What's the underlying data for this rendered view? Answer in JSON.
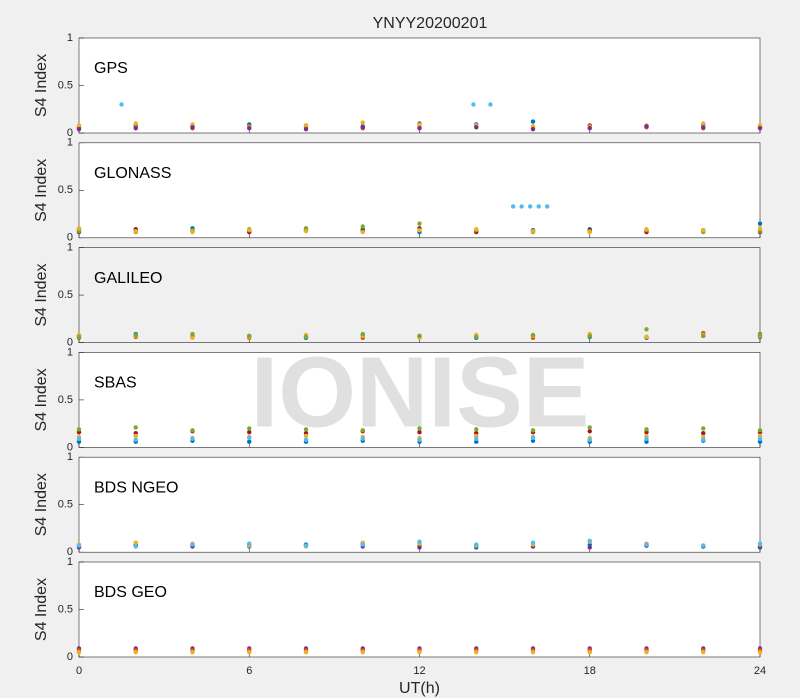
{
  "title": "YNYY20200201",
  "watermark": "IONISE",
  "chart_data": [
    {
      "type": "scatter",
      "label": "GPS",
      "ylabel": "S4 Index",
      "background": "#ffffff",
      "xlim": [
        0,
        24
      ],
      "ylim": [
        0,
        1
      ],
      "yticks": [
        0,
        0.5,
        1
      ],
      "x": [
        0,
        2,
        4,
        6,
        8,
        10,
        12,
        14,
        16,
        18,
        20,
        22,
        24
      ],
      "series": [
        {
          "color": "#0072bd",
          "values": [
            0.06,
            0.08,
            0.07,
            0.09,
            0.08,
            0.07,
            0.1,
            0.09,
            0.12,
            0.08,
            0.07,
            0.09,
            0.06
          ]
        },
        {
          "color": "#d95319",
          "values": [
            0.05,
            0.06,
            0.05,
            0.07,
            0.06,
            0.05,
            0.06,
            0.07,
            0.05,
            0.08,
            0.06,
            0.05,
            0.07
          ]
        },
        {
          "color": "#edb120",
          "values": [
            0.08,
            0.1,
            0.09,
            0.06,
            0.08,
            0.11,
            0.09,
            0.08,
            0.07,
            0.06,
            0.08,
            0.1,
            0.08
          ]
        },
        {
          "color": "#7e2f8e",
          "values": [
            0.04,
            0.05,
            0.06,
            0.05,
            0.04,
            0.06,
            0.05,
            0.06,
            0.04,
            0.05,
            0.07,
            0.06,
            0.05
          ]
        },
        {
          "color": "#4dbeee",
          "x": [
            1.5,
            13.9,
            14.5
          ],
          "values": [
            0.3,
            0.3,
            0.3
          ]
        }
      ]
    },
    {
      "type": "scatter",
      "label": "GLONASS",
      "ylabel": "S4 Index",
      "background": "#ffffff",
      "xlim": [
        0,
        24
      ],
      "ylim": [
        0,
        1
      ],
      "yticks": [
        0,
        0.5,
        1
      ],
      "x": [
        0,
        2,
        4,
        6,
        8,
        10,
        12,
        14,
        16,
        18,
        20,
        22,
        24
      ],
      "series": [
        {
          "color": "#0072bd",
          "values": [
            0.09,
            0.08,
            0.1,
            0.07,
            0.08,
            0.09,
            0.06,
            0.07,
            0.08,
            0.09,
            0.07,
            0.08,
            0.15
          ]
        },
        {
          "color": "#a2142f",
          "values": [
            0.06,
            0.09,
            0.07,
            0.06,
            0.08,
            0.07,
            0.1,
            0.06,
            0.07,
            0.08,
            0.06,
            0.07,
            0.06
          ]
        },
        {
          "color": "#77ac30",
          "values": [
            0.07,
            0.06,
            0.08,
            0.09,
            0.1,
            0.12,
            0.15,
            0.08,
            0.06,
            0.07,
            0.08,
            0.06,
            0.07
          ]
        },
        {
          "color": "#edb120",
          "values": [
            0.1,
            0.07,
            0.06,
            0.08,
            0.07,
            0.06,
            0.08,
            0.09,
            0.07,
            0.06,
            0.09,
            0.08,
            0.1
          ]
        },
        {
          "color": "#4dbeee",
          "x": [
            15.3,
            15.6,
            15.9,
            16.2,
            16.5
          ],
          "values": [
            0.33,
            0.33,
            0.33,
            0.33,
            0.33
          ]
        }
      ]
    },
    {
      "type": "scatter",
      "label": "GALILEO",
      "ylabel": "S4 Index",
      "background": "#f0f0f0",
      "xlim": [
        0,
        24
      ],
      "ylim": [
        0,
        1
      ],
      "yticks": [
        0,
        0.5,
        1
      ],
      "x": [
        0,
        2,
        4,
        6,
        8,
        10,
        12,
        14,
        16,
        18,
        20,
        22,
        24
      ],
      "series": [
        {
          "color": "#0072bd",
          "values": [
            0.07,
            0.09,
            0.06,
            0.07,
            0.05,
            0.08,
            0.06,
            0.05,
            0.07,
            0.06,
            0.05,
            0.07,
            0.06
          ]
        },
        {
          "color": "#d95319",
          "values": [
            0.05,
            0.06,
            0.07,
            0.05,
            0.06,
            0.05,
            0.07,
            0.06,
            0.05,
            0.07,
            0.06,
            0.1,
            0.09
          ]
        },
        {
          "color": "#edb120",
          "values": [
            0.08,
            0.07,
            0.05,
            0.06,
            0.08,
            0.07,
            0.05,
            0.08,
            0.07,
            0.09,
            0.06,
            0.08,
            0.07
          ]
        },
        {
          "color": "#77ac30",
          "values": [
            0.06,
            0.08,
            0.09,
            0.07,
            0.06,
            0.09,
            0.07,
            0.06,
            0.08,
            0.07,
            0.14,
            0.07,
            0.08
          ]
        }
      ]
    },
    {
      "type": "scatter",
      "label": "SBAS",
      "ylabel": "S4 Index",
      "background": "#ffffff",
      "xlim": [
        0,
        24
      ],
      "ylim": [
        0,
        1
      ],
      "yticks": [
        0,
        0.5,
        1
      ],
      "x": [
        0,
        2,
        4,
        6,
        8,
        10,
        12,
        14,
        16,
        18,
        20,
        22,
        24
      ],
      "series": [
        {
          "color": "#0072bd",
          "values": [
            0.06,
            0.06,
            0.07,
            0.06,
            0.06,
            0.07,
            0.06,
            0.06,
            0.07,
            0.06,
            0.06,
            0.07,
            0.06
          ]
        },
        {
          "color": "#a2142f",
          "values": [
            0.16,
            0.15,
            0.17,
            0.16,
            0.15,
            0.17,
            0.16,
            0.15,
            0.16,
            0.17,
            0.16,
            0.15,
            0.16
          ]
        },
        {
          "color": "#77ac30",
          "values": [
            0.19,
            0.21,
            0.18,
            0.2,
            0.19,
            0.18,
            0.2,
            0.19,
            0.18,
            0.21,
            0.19,
            0.2,
            0.18
          ]
        },
        {
          "color": "#edb120",
          "values": [
            0.11,
            0.12,
            0.1,
            0.11,
            0.12,
            0.11,
            0.1,
            0.12,
            0.11,
            0.1,
            0.12,
            0.11,
            0.12
          ]
        },
        {
          "color": "#4dbeee",
          "values": [
            0.09,
            0.08,
            0.09,
            0.1,
            0.08,
            0.09,
            0.08,
            0.09,
            0.1,
            0.08,
            0.09,
            0.08,
            0.09
          ]
        }
      ]
    },
    {
      "type": "scatter",
      "label": "BDS NGEO",
      "ylabel": "S4 Index",
      "background": "#ffffff",
      "xlim": [
        0,
        24
      ],
      "ylim": [
        0,
        1
      ],
      "yticks": [
        0,
        0.5,
        1
      ],
      "x": [
        0,
        2,
        4,
        6,
        8,
        10,
        12,
        14,
        16,
        18,
        20,
        22,
        24
      ],
      "series": [
        {
          "color": "#0072bd",
          "values": [
            0.06,
            0.08,
            0.07,
            0.06,
            0.08,
            0.09,
            0.07,
            0.05,
            0.06,
            0.08,
            0.07,
            0.06,
            0.05
          ]
        },
        {
          "color": "#7e2f8e",
          "values": [
            0.05,
            0.07,
            0.06,
            0.08,
            0.07,
            0.06,
            0.05,
            0.07,
            0.06,
            0.05,
            0.07,
            0.06,
            0.06
          ]
        },
        {
          "color": "#edb120",
          "values": [
            0.08,
            0.1,
            0.09,
            0.07,
            0.06,
            0.1,
            0.09,
            0.07,
            0.08,
            0.11,
            0.09,
            0.07,
            0.08
          ]
        },
        {
          "color": "#4dbeee",
          "values": [
            0.07,
            0.06,
            0.08,
            0.09,
            0.07,
            0.08,
            0.11,
            0.08,
            0.1,
            0.12,
            0.08,
            0.07,
            0.09
          ]
        }
      ]
    },
    {
      "type": "scatter",
      "label": "BDS GEO",
      "ylabel": "S4 Index",
      "xlabel": "UT(h)",
      "background": "#ffffff",
      "xlim": [
        0,
        24
      ],
      "ylim": [
        0,
        1
      ],
      "yticks": [
        0,
        0.5,
        1
      ],
      "xticks": [
        0,
        6,
        12,
        18,
        24
      ],
      "x": [
        0,
        2,
        4,
        6,
        8,
        10,
        12,
        14,
        16,
        18,
        20,
        22,
        24
      ],
      "series": [
        {
          "color": "#7e2f8e",
          "values": [
            0.09,
            0.09,
            0.09,
            0.09,
            0.09,
            0.09,
            0.09,
            0.09,
            0.09,
            0.09,
            0.09,
            0.09,
            0.09
          ]
        },
        {
          "color": "#d95319",
          "values": [
            0.07,
            0.07,
            0.07,
            0.07,
            0.07,
            0.07,
            0.07,
            0.07,
            0.07,
            0.07,
            0.07,
            0.07,
            0.07
          ]
        },
        {
          "color": "#edb120",
          "values": [
            0.05,
            0.05,
            0.05,
            0.05,
            0.05,
            0.05,
            0.05,
            0.05,
            0.05,
            0.05,
            0.05,
            0.05,
            0.05
          ]
        }
      ]
    }
  ]
}
